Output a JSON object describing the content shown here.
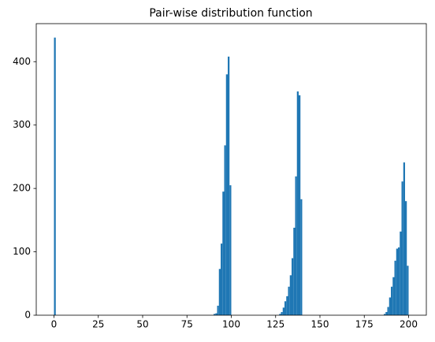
{
  "chart_data": {
    "type": "histogram",
    "title": "Pair-wise distribution function",
    "color": "#1f77b4",
    "bins": [
      0,
      1,
      2,
      3,
      4,
      5,
      6,
      7,
      8,
      9,
      10,
      11,
      12,
      13,
      14,
      15,
      16,
      17,
      18,
      19,
      20,
      21,
      22,
      23,
      24,
      25,
      26,
      27,
      28,
      29,
      30,
      31,
      32,
      33,
      34,
      35,
      36,
      37,
      38,
      39,
      40,
      41,
      42,
      43,
      44,
      45,
      46,
      47,
      48,
      49,
      50,
      51,
      52,
      53,
      54,
      55,
      56,
      57,
      58,
      59,
      60,
      61,
      62,
      63,
      64,
      65,
      66,
      67,
      68,
      69,
      70,
      71,
      72,
      73,
      74,
      75,
      76,
      77,
      78,
      79,
      80,
      81,
      82,
      83,
      84,
      85,
      86,
      87,
      88,
      89,
      90,
      91,
      92,
      93,
      94,
      95,
      96,
      97,
      98,
      99,
      100,
      101,
      102,
      103,
      104,
      105,
      106,
      107,
      108,
      109,
      110,
      111,
      112,
      113,
      114,
      115,
      116,
      117,
      118,
      119,
      120,
      121,
      122,
      123,
      124,
      125,
      126,
      127,
      128,
      129,
      130,
      131,
      132,
      133,
      134,
      135,
      136,
      137,
      138,
      139,
      140,
      141,
      142,
      143,
      144,
      145,
      146,
      147,
      148,
      149,
      150,
      151,
      152,
      153,
      154,
      155,
      156,
      157,
      158,
      159,
      160,
      161,
      162,
      163,
      164,
      165,
      166,
      167,
      168,
      169,
      170,
      171,
      172,
      173,
      174,
      175,
      176,
      177,
      178,
      179,
      180,
      181,
      182,
      183,
      184,
      185,
      186,
      187,
      188,
      189,
      190,
      191,
      192,
      193,
      194,
      195,
      196,
      197,
      198,
      199,
      200
    ],
    "counts": [
      438,
      0,
      0,
      0,
      0,
      0,
      0,
      0,
      0,
      0,
      0,
      0,
      0,
      0,
      0,
      0,
      0,
      0,
      0,
      0,
      0,
      0,
      0,
      0,
      0,
      0,
      0,
      0,
      0,
      0,
      0,
      0,
      0,
      0,
      0,
      0,
      0,
      0,
      0,
      0,
      0,
      0,
      0,
      0,
      0,
      0,
      0,
      0,
      0,
      0,
      0,
      0,
      0,
      0,
      0,
      0,
      0,
      0,
      0,
      0,
      0,
      0,
      0,
      0,
      0,
      0,
      0,
      0,
      0,
      0,
      0,
      0,
      0,
      0,
      0,
      0,
      0,
      0,
      0,
      0,
      0,
      0,
      0,
      0,
      0,
      0,
      0,
      0,
      0,
      0,
      2,
      3,
      15,
      73,
      113,
      195,
      268,
      380,
      408,
      205,
      0,
      0,
      0,
      0,
      0,
      0,
      0,
      0,
      0,
      0,
      0,
      0,
      0,
      0,
      0,
      0,
      0,
      0,
      0,
      0,
      0,
      0,
      0,
      0,
      0,
      0,
      0,
      2,
      5,
      12,
      22,
      30,
      45,
      63,
      90,
      138,
      219,
      353,
      347,
      183,
      0,
      0,
      0,
      0,
      0,
      0,
      0,
      0,
      0,
      0,
      0,
      0,
      0,
      0,
      0,
      0,
      0,
      0,
      0,
      0,
      0,
      0,
      0,
      0,
      0,
      0,
      0,
      0,
      0,
      0,
      0,
      0,
      0,
      0,
      0,
      0,
      0,
      0,
      0,
      0,
      0,
      0,
      0,
      0,
      0,
      0,
      2,
      5,
      13,
      28,
      45,
      60,
      86,
      105,
      107,
      132,
      211,
      241,
      180,
      78
    ],
    "xlim": [
      -10,
      210
    ],
    "ylim": [
      0,
      460
    ],
    "xticks": [
      0,
      25,
      50,
      75,
      100,
      125,
      150,
      175,
      200
    ],
    "yticks": [
      0,
      100,
      200,
      300,
      400
    ]
  }
}
